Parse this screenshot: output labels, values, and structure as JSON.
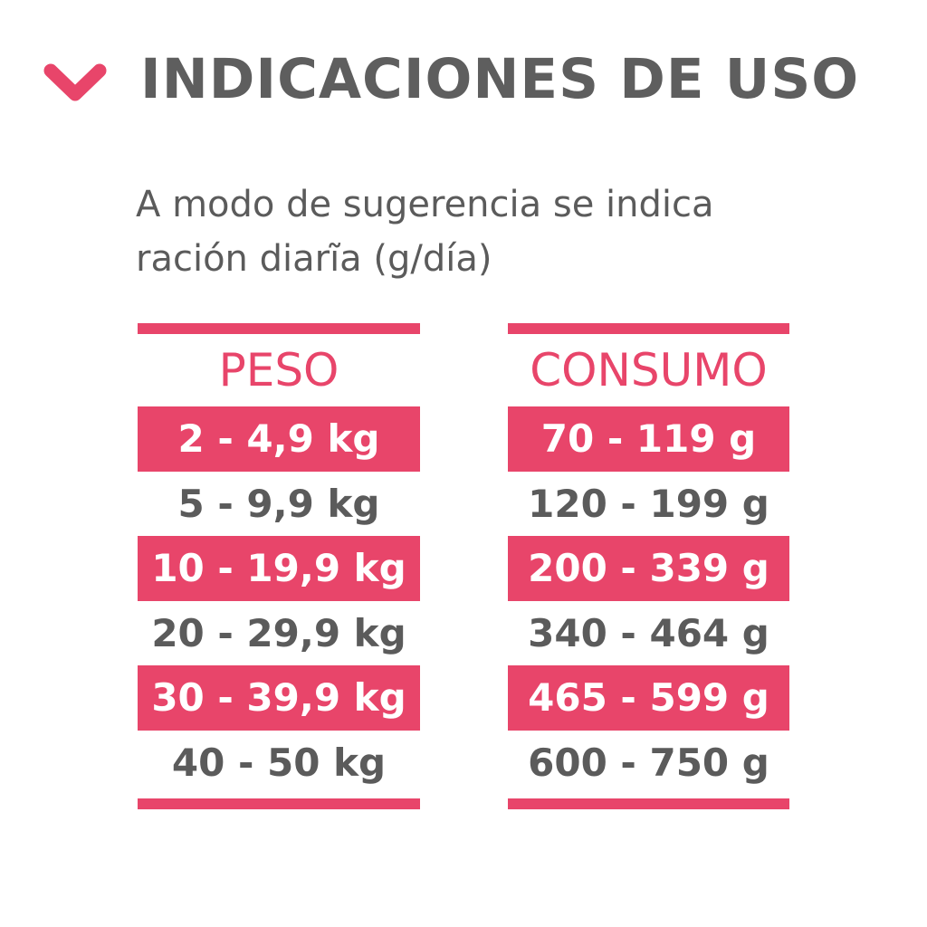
{
  "header": {
    "icon": "chevron-down-icon",
    "title": "INDICACIONES DE USO"
  },
  "subtitle": {
    "line1": "A modo de sugerencia se indica",
    "line2": "ración diarĩa (g/día)"
  },
  "colors": {
    "accent": "#e8456a",
    "text": "#5b5b5b"
  },
  "table": {
    "peso": {
      "header": "PESO",
      "rows": [
        "2 - 4,9 kg",
        "5 - 9,9 kg",
        "10 - 19,9 kg",
        "20 - 29,9 kg",
        "30 - 39,9 kg",
        "40 - 50 kg"
      ]
    },
    "consumo": {
      "header": "CONSUMO",
      "rows": [
        "70 - 119 g",
        "120 - 199 g",
        "200 - 339 g",
        "340 - 464 g",
        "465 - 599 g",
        "600 - 750 g"
      ]
    }
  }
}
